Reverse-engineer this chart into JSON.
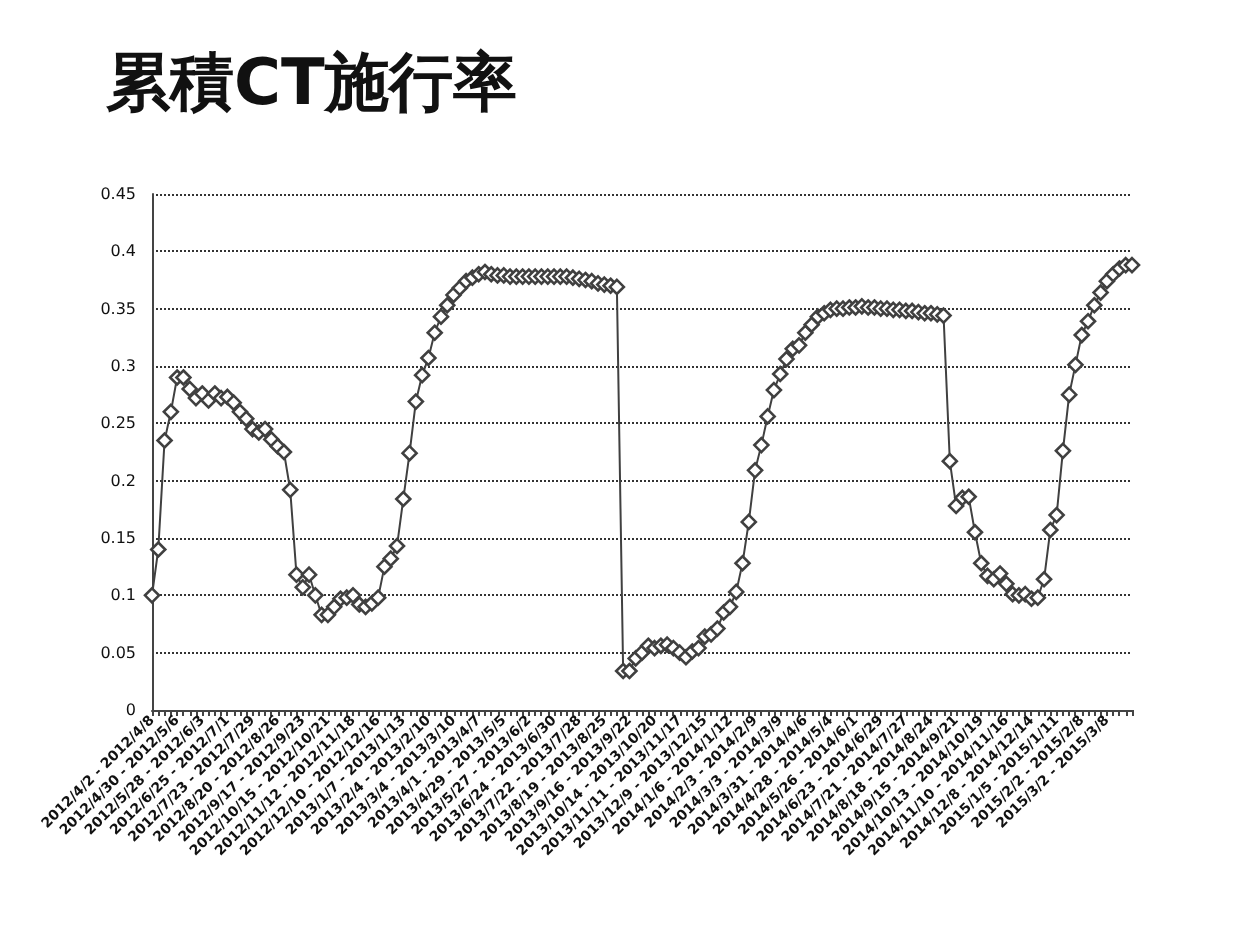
{
  "chart_data": {
    "type": "line",
    "title": "累積CT施行率",
    "categories": [
      "2012/4/2 - 2012/4/8",
      null,
      null,
      null,
      "2012/4/30 - 2012/5/6",
      null,
      null,
      null,
      "2012/5/28 - 2012/6/3",
      null,
      null,
      null,
      "2012/6/25 - 2012/7/1",
      null,
      null,
      null,
      "2012/7/23 - 2012/7/29",
      null,
      null,
      null,
      "2012/8/20 - 2012/8/26",
      null,
      null,
      null,
      "2012/9/17 - 2012/9/23",
      null,
      null,
      null,
      "2012/10/15 - 2012/10/21",
      null,
      null,
      null,
      "2012/11/12 - 2012/11/18",
      null,
      null,
      null,
      "2012/12/10 - 2012/12/16",
      null,
      null,
      null,
      "2013/1/7 - 2013/1/13",
      null,
      null,
      null,
      "2013/2/4 - 2013/2/10",
      null,
      null,
      null,
      "2013/3/4 - 2013/3/10",
      null,
      null,
      null,
      "2013/4/1 - 2013/4/7",
      null,
      null,
      null,
      "2013/4/29 - 2013/5/5",
      null,
      null,
      null,
      "2013/5/27 - 2013/6/2",
      null,
      null,
      null,
      "2013/6/24 - 2013/6/30",
      null,
      null,
      null,
      "2013/7/22 - 2013/7/28",
      null,
      null,
      null,
      "2013/8/19 - 2013/8/25",
      null,
      null,
      null,
      "2013/9/16 - 2013/9/22",
      null,
      null,
      null,
      "2013/10/14 - 2013/10/20",
      null,
      null,
      null,
      "2013/11/11 - 2013/11/17",
      null,
      null,
      null,
      "2013/12/9 - 2013/12/15",
      null,
      null,
      null,
      "2014/1/6 - 2014/1/12",
      null,
      null,
      null,
      "2014/2/3 - 2014/2/9",
      null,
      null,
      null,
      "2014/3/3 - 2014/3/9",
      null,
      null,
      null,
      "2014/3/31 - 2014/4/6",
      null,
      null,
      null,
      "2014/4/28 - 2014/5/4",
      null,
      null,
      null,
      "2014/5/26 - 2014/6/1",
      null,
      null,
      null,
      "2014/6/23 - 2014/6/29",
      null,
      null,
      null,
      "2014/7/21 - 2014/7/27",
      null,
      null,
      null,
      "2014/8/18 - 2014/8/24",
      null,
      null,
      null,
      "2014/9/15 - 2014/9/21",
      null,
      null,
      null,
      "2014/10/13 - 2014/10/19",
      null,
      null,
      null,
      "2014/11/10 - 2014/11/16",
      null,
      null,
      null,
      "2014/12/8 - 2014/12/14",
      null,
      null,
      null,
      "2015/1/5 - 2015/1/11",
      null,
      null,
      null,
      "2015/2/2 - 2015/2/8",
      null,
      null,
      null,
      "2015/3/2 - 2015/3/8",
      null,
      null,
      null,
      null
    ],
    "series": [
      {
        "color": "#404040",
        "values": [
          0.1,
          0.14,
          0.235,
          0.26,
          0.29,
          0.29,
          0.28,
          0.272,
          0.276,
          0.27,
          0.276,
          0.272,
          0.273,
          0.268,
          0.26,
          0.254,
          0.245,
          0.242,
          0.245,
          0.236,
          0.23,
          0.225,
          0.192,
          0.118,
          0.107,
          0.118,
          0.1,
          0.083,
          0.083,
          0.09,
          0.097,
          0.098,
          0.1,
          0.092,
          0.09,
          0.093,
          0.098,
          0.125,
          0.132,
          0.143,
          0.184,
          0.224,
          0.269,
          0.292,
          0.307,
          0.329,
          0.343,
          0.353,
          0.362,
          0.368,
          0.374,
          0.377,
          0.38,
          0.382,
          0.38,
          0.379,
          0.379,
          0.378,
          0.378,
          0.378,
          0.378,
          0.378,
          0.378,
          0.378,
          0.378,
          0.378,
          0.378,
          0.377,
          0.376,
          0.375,
          0.374,
          0.372,
          0.371,
          0.37,
          0.369,
          0.034,
          0.034,
          0.045,
          0.05,
          0.056,
          0.054,
          0.056,
          0.057,
          0.054,
          0.05,
          0.046,
          0.051,
          0.054,
          0.064,
          0.066,
          0.071,
          0.085,
          0.09,
          0.103,
          0.128,
          0.164,
          0.209,
          0.231,
          0.256,
          0.279,
          0.293,
          0.306,
          0.315,
          0.318,
          0.329,
          0.336,
          0.343,
          0.346,
          0.349,
          0.35,
          0.35,
          0.351,
          0.351,
          0.352,
          0.351,
          0.351,
          0.35,
          0.35,
          0.349,
          0.349,
          0.348,
          0.348,
          0.347,
          0.346,
          0.346,
          0.345,
          0.344,
          0.217,
          0.178,
          0.185,
          0.186,
          0.155,
          0.128,
          0.117,
          0.114,
          0.119,
          0.11,
          0.101,
          0.1,
          0.101,
          0.097,
          0.098,
          0.114,
          0.157,
          0.17,
          0.226,
          0.275,
          0.301,
          0.327,
          0.339,
          0.353,
          0.364,
          0.374,
          0.38,
          0.385,
          0.388,
          0.388
        ]
      }
    ],
    "ylim": [
      0,
      0.45
    ],
    "yticks": [
      0,
      0.05,
      0.1,
      0.15,
      0.2,
      0.25,
      0.3,
      0.35,
      0.4,
      0.45
    ],
    "grid": "y",
    "marker": "diamond",
    "line_style": "solid"
  }
}
